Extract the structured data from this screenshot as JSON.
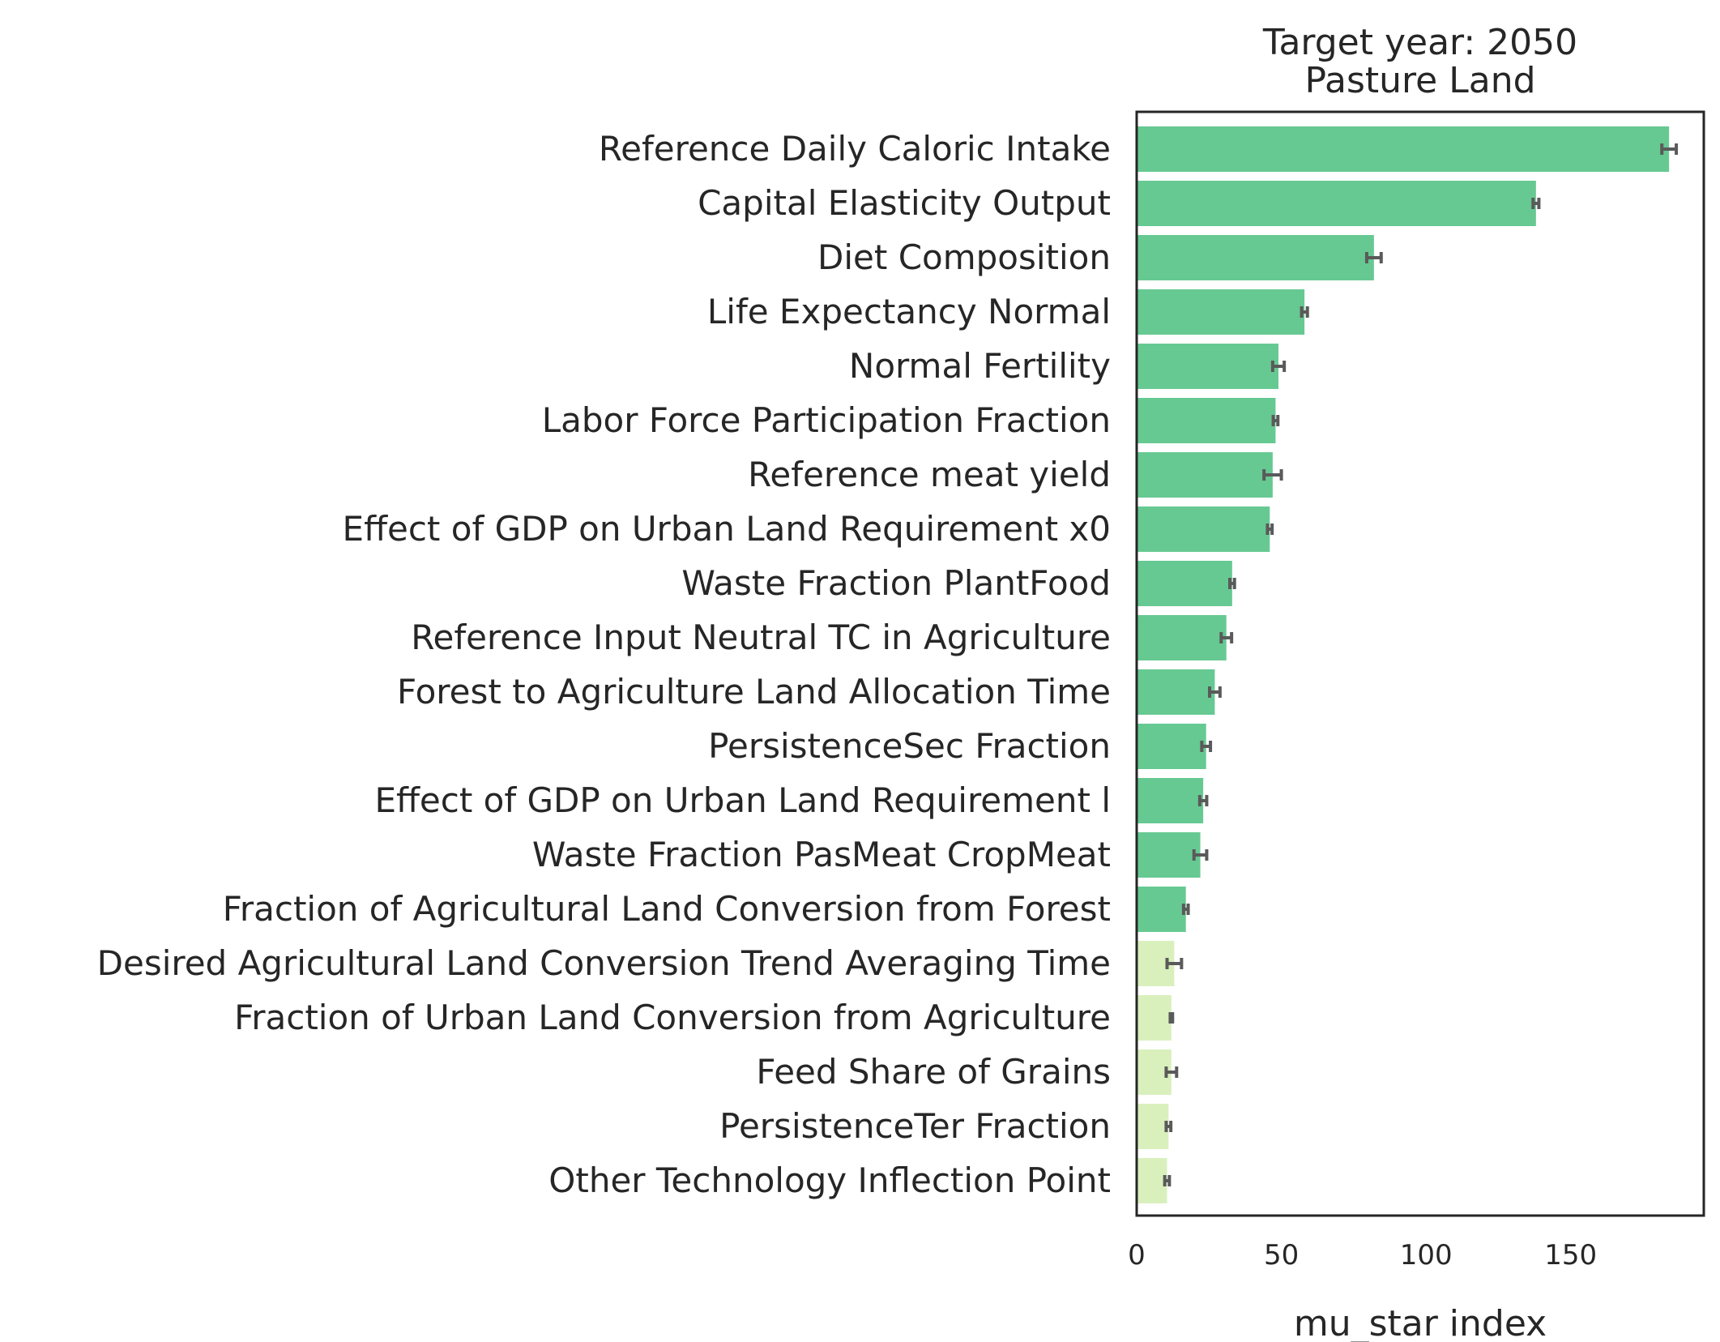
{
  "chart_data": {
    "type": "bar",
    "orientation": "horizontal",
    "title": "Target year: 2050",
    "subtitle": "Pasture Land",
    "xlabel": "mu_star index",
    "ylabel": "",
    "xlim": [
      0,
      196
    ],
    "xticks": [
      "0",
      "50",
      "100",
      "150"
    ],
    "grid": false,
    "legend": "none",
    "categories": [
      "Reference Daily Caloric Intake",
      "Capital Elasticity Output",
      "Diet Composition",
      "Life Expectancy Normal",
      "Normal Fertility",
      "Labor Force Participation Fraction",
      "Reference meat yield",
      "Effect of GDP on Urban Land Requirement x0",
      "Waste Fraction PlantFood",
      "Reference Input Neutral TC in Agriculture",
      "Forest to Agriculture Land Allocation Time",
      "PersistenceSec Fraction",
      "Effect of GDP on Urban Land Requirement l",
      "Waste Fraction PasMeat CropMeat",
      "Fraction of Agricultural Land Conversion from Forest",
      "Desired Agricultural Land Conversion Trend Averaging Time",
      "Fraction of Urban Land Conversion from Agriculture",
      "Feed Share of Grains",
      "PersistenceTer Fraction",
      "Other Technology Inflection Point"
    ],
    "values": [
      184,
      138,
      82,
      58,
      49,
      48,
      47,
      46,
      33,
      31,
      27,
      24,
      23,
      22,
      17,
      13,
      12,
      12,
      11,
      10.5
    ],
    "errors": [
      2.5,
      1,
      2.5,
      1,
      2,
      0.8,
      3,
      0.8,
      0.8,
      1.8,
      1.8,
      1.5,
      1.2,
      2.2,
      0.8,
      2.5,
      0.4,
      1.8,
      0.8,
      0.8
    ],
    "colors": {
      "important": "#66c992",
      "minor": "#d9f0bd",
      "error_bar": "#5a5a5a",
      "axis": "#262626"
    },
    "important_count": 15
  }
}
